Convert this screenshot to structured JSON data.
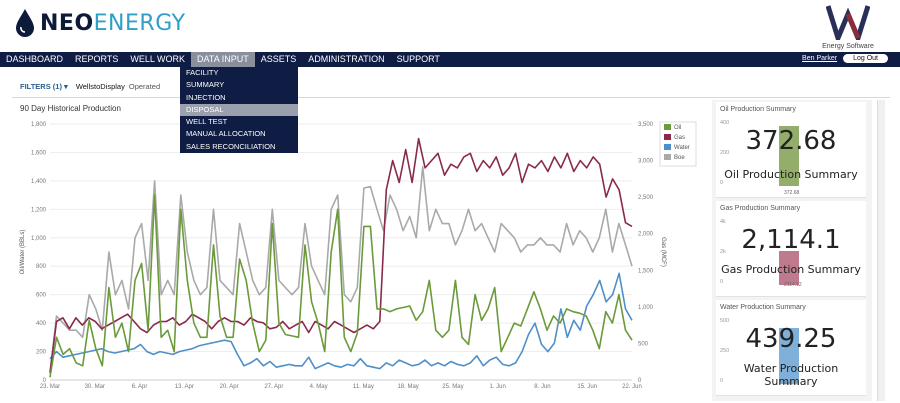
{
  "brand": {
    "name_bold": "NEO",
    "name_thin": "ENERGY",
    "partner_logo_tag": "Energy Software"
  },
  "nav": {
    "items": [
      "DASHBOARD",
      "REPORTS",
      "WELL WORK",
      "DATA INPUT",
      "ASSETS",
      "ADMINISTRATION",
      "SUPPORT"
    ],
    "active": "DATA INPUT",
    "user": "Ben Parker",
    "logout": "Log Out"
  },
  "dropdown": {
    "items": [
      "FACILITY",
      "SUMMARY",
      "INJECTION",
      "DISPOSAL",
      "WELL TEST",
      "MANUAL ALLOCATION",
      "SALES RECONCILIATION"
    ],
    "selected": "DISPOSAL"
  },
  "filters": {
    "label": "FILTERS (1)",
    "wells_to_display": "WellstoDisplay",
    "operated": "Operated"
  },
  "chart_data": {
    "type": "line",
    "title": "90 Day Historical Production",
    "ylabel_left": "Oil/Water (BBLs)",
    "ylabel_right": "Gas (MCF)",
    "y_left_ticks": [
      "0",
      "200",
      "400",
      "600",
      "800",
      "1,000",
      "1,200",
      "1,400",
      "1,600",
      "1,800"
    ],
    "y_right_ticks": [
      "0",
      "500",
      "1,000",
      "1,500",
      "2,000",
      "2,500",
      "3,000",
      "3,500"
    ],
    "ylim_left": [
      0,
      1800
    ],
    "ylim_right": [
      0,
      3500
    ],
    "x_ticks": [
      "23. Mar",
      "30. Mar",
      "6. Apr",
      "13. Apr",
      "20. Apr",
      "27. Apr",
      "4. May",
      "11. May",
      "18. May",
      "25. May",
      "1. Jun",
      "8. Jun",
      "15. Jun",
      "22. Jun"
    ],
    "legend_position": "top-right",
    "series": [
      {
        "name": "Oil",
        "color": "#6a9a3a",
        "axis": "left",
        "values": [
          20,
          300,
          180,
          220,
          120,
          100,
          420,
          220,
          100,
          650,
          300,
          400,
          200,
          700,
          820,
          350,
          1300,
          300,
          350,
          200,
          1200,
          700,
          400,
          300,
          300,
          950,
          450,
          300,
          300,
          850,
          700,
          400,
          200,
          280,
          1100,
          400,
          320,
          310,
          300,
          950,
          550,
          400,
          200,
          900,
          1200,
          300,
          200,
          330,
          1080,
          1080,
          500,
          500,
          480,
          500,
          510,
          520,
          420,
          480,
          700,
          350,
          300,
          350,
          700,
          300,
          250,
          600,
          420,
          500,
          650,
          200,
          300,
          400,
          380,
          500,
          620,
          500,
          350,
          450,
          400,
          500,
          480,
          470,
          450,
          350,
          220,
          480,
          400,
          600,
          350,
          280
        ]
      },
      {
        "name": "Gas",
        "color": "#8a2a4a",
        "axis": "right",
        "values": [
          100,
          800,
          850,
          700,
          850,
          750,
          850,
          800,
          700,
          750,
          800,
          850,
          900,
          800,
          700,
          650,
          750,
          800,
          800,
          850,
          750,
          800,
          900,
          850,
          800,
          700,
          800,
          850,
          800,
          800,
          750,
          850,
          800,
          780,
          700,
          720,
          800,
          700,
          750,
          800,
          650,
          800,
          750,
          700,
          800,
          750,
          700,
          650,
          700,
          750,
          700,
          800,
          2600,
          3000,
          2700,
          3150,
          2700,
          3300,
          2900,
          3000,
          3100,
          2800,
          2950,
          2900,
          3050,
          3100,
          2850,
          3000,
          2900,
          3050,
          2800,
          2900,
          3100,
          2700,
          2950,
          2900,
          3000,
          2850,
          3050,
          2900,
          3100,
          2850,
          3000,
          2900,
          3050,
          2950,
          2500,
          2750,
          2600,
          2150,
          2100
        ]
      },
      {
        "name": "Water",
        "color": "#4f8fc9",
        "axis": "left",
        "values": [
          150,
          200,
          160,
          170,
          180,
          190,
          200,
          210,
          220,
          200,
          190,
          200,
          210,
          220,
          250,
          200,
          180,
          200,
          190,
          180,
          200,
          210,
          220,
          240,
          250,
          260,
          270,
          280,
          270,
          180,
          100,
          120,
          150,
          100,
          130,
          90,
          100,
          110,
          100,
          100,
          160,
          80,
          100,
          120,
          100,
          90,
          110,
          100,
          150,
          100,
          90,
          80,
          120,
          100,
          140,
          120,
          100,
          110,
          140,
          100,
          120,
          100,
          130,
          110,
          100,
          120,
          170,
          100,
          140,
          160,
          110,
          100,
          120,
          200,
          320,
          400,
          250,
          200,
          260,
          500,
          300,
          420,
          350,
          520,
          600,
          700,
          550,
          600,
          750,
          500,
          420
        ]
      },
      {
        "name": "Boe",
        "color": "#a9a9a9",
        "axis": "left",
        "values": [
          50,
          450,
          400,
          350,
          350,
          300,
          600,
          500,
          350,
          900,
          600,
          700,
          500,
          1000,
          1100,
          700,
          1400,
          600,
          700,
          600,
          1300,
          900,
          700,
          600,
          650,
          1200,
          700,
          650,
          600,
          1100,
          900,
          700,
          600,
          650,
          1200,
          700,
          650,
          600,
          650,
          1100,
          800,
          700,
          600,
          1200,
          1300,
          600,
          550,
          650,
          1350,
          1360,
          1200,
          1050,
          1300,
          1200,
          1050,
          1150,
          1000,
          1500,
          1050,
          1200,
          1100,
          1100,
          950,
          1050,
          1200,
          1050,
          1100,
          1000,
          900,
          1100,
          1050,
          1000,
          900,
          950,
          950,
          1000,
          950,
          950,
          900,
          1100,
          950,
          1050,
          1000,
          900,
          1000,
          1200,
          900,
          1100,
          950,
          800
        ]
      }
    ]
  },
  "summaries": [
    {
      "title": "Oil Production Summary",
      "value": "372.68",
      "label": "Oil Production Summary",
      "small": "372.68",
      "color": "#93ad6b",
      "axis": [
        "400",
        "200",
        "0"
      ],
      "fill_fraction": 0.93
    },
    {
      "title": "Gas Production Summary",
      "value": "2,114.1",
      "label": "Gas Production Summary",
      "small": "2114.12",
      "color": "#c07a8e",
      "axis": [
        "4k",
        "2k",
        "0"
      ],
      "fill_fraction": 0.53
    },
    {
      "title": "Water Production Summary",
      "value": "439.25",
      "label": "Water Production Summary",
      "small": "439.25",
      "color": "#7fb0da",
      "axis": [
        "500",
        "250",
        "0"
      ],
      "fill_fraction": 0.88
    }
  ]
}
